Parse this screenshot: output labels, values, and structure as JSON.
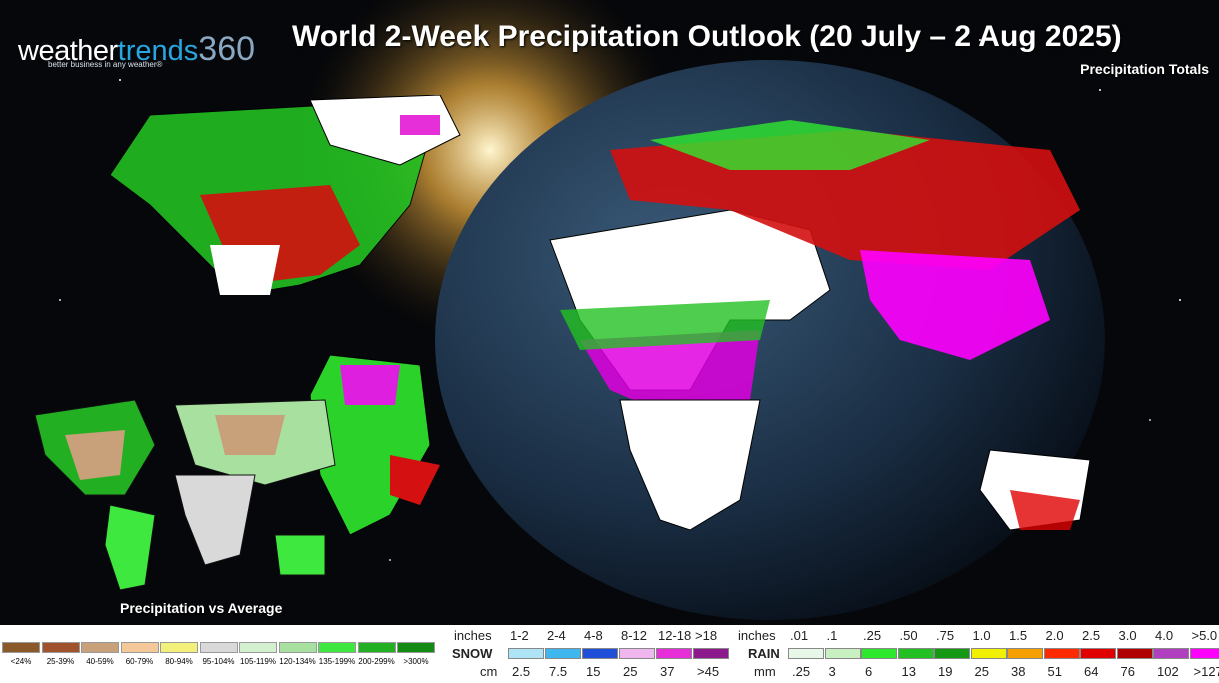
{
  "logo": {
    "part1": "weather",
    "part2": "trends",
    "part3": "360",
    "tagline": "better business in any weather®"
  },
  "title": "World 2-Week Precipitation Outlook (20 July – 2 Aug 2025)",
  "subtitle": "Precipitation Totals",
  "inset_label": "Precipitation vs Average",
  "avg_legend": [
    {
      "label": "<24%",
      "color": "#8b5a2b"
    },
    {
      "label": "25-39%",
      "color": "#a0522d"
    },
    {
      "label": "40-59%",
      "color": "#c8a07a"
    },
    {
      "label": "60-79%",
      "color": "#f5c89a"
    },
    {
      "label": "80-94%",
      "color": "#f2f07a"
    },
    {
      "label": "95-104%",
      "color": "#d9d9d9"
    },
    {
      "label": "105-119%",
      "color": "#d4efd0"
    },
    {
      "label": "120-134%",
      "color": "#a8e0a0"
    },
    {
      "label": "135-199%",
      "color": "#3ee83e"
    },
    {
      "label": "200-299%",
      "color": "#22b022"
    },
    {
      "label": ">300%",
      "color": "#138a13"
    }
  ],
  "snow_legend": {
    "inches_label": "inches",
    "row_label": "SNOW",
    "cm_label": "cm",
    "inches": [
      "1-2",
      "2-4",
      "4-8",
      "8-12",
      "12-18",
      ">18"
    ],
    "cm": [
      "2.5",
      "7.5",
      "15",
      "25",
      "37",
      ">45"
    ],
    "colors": [
      "#aee4f5",
      "#3fb7ee",
      "#1f4fd8",
      "#f0b6ee",
      "#e62ed9",
      "#8c1a8c"
    ]
  },
  "rain_legend": {
    "inches_label": "inches",
    "row_label": "RAIN",
    "mm_label": "mm",
    "inches": [
      ".01",
      ".1",
      ".25",
      ".50",
      ".75",
      "1.0",
      "1.5",
      "2.0",
      "2.5",
      "3.0",
      "4.0",
      ">5.0"
    ],
    "mm": [
      ".25",
      "3",
      "6",
      "13",
      "19",
      "25",
      "38",
      "51",
      "64",
      "76",
      "102",
      ">127"
    ],
    "colors": [
      "#e8f8e8",
      "#c8f0c0",
      "#2ee82e",
      "#22c022",
      "#159915",
      "#f0f000",
      "#f5a000",
      "#ff2a00",
      "#e00000",
      "#b00000",
      "#b040c0",
      "#ff00ff"
    ]
  }
}
